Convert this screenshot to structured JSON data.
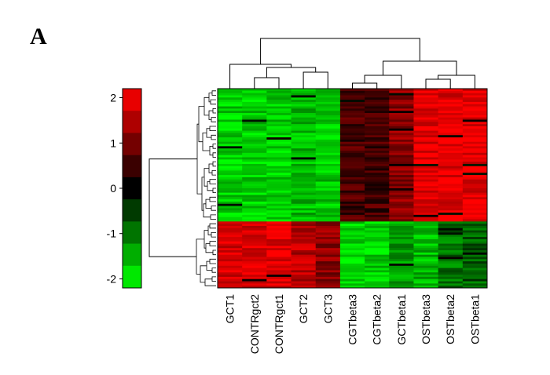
{
  "panel_label": "A",
  "chart_data": {
    "type": "heatmap",
    "title": "",
    "columns": [
      "GCT1",
      "CONTRgct2",
      "CONTRgct1",
      "GCT2",
      "GCT3",
      "CGTbeta3",
      "CGTbeta2",
      "GCTbeta1",
      "OSTbeta3",
      "OSTbeta2",
      "OSTbeta1"
    ],
    "colorbar": {
      "ticks": [
        2,
        1,
        0,
        -1,
        -2
      ],
      "range": [
        -2.2,
        2.2
      ],
      "levels": [
        2,
        1.5,
        1,
        0.5,
        0,
        -0.5,
        -1,
        -1.5,
        -2
      ],
      "colormap": "green-black-red"
    },
    "row_groups": [
      {
        "rows": 60,
        "profile": [
          -1.8,
          -1.8,
          -1.8,
          -1.6,
          -1.7,
          0.6,
          0.6,
          1.2,
          2.0,
          2.0,
          2.0
        ]
      },
      {
        "rows": 30,
        "profile": [
          1.9,
          1.9,
          2.0,
          1.6,
          1.2,
          -1.8,
          -1.8,
          -1.4,
          -1.6,
          -1.0,
          -0.8
        ]
      }
    ],
    "dendrogram_columns": true,
    "dendrogram_rows": true,
    "colors": {
      "high": "#ff0000",
      "mid": "#000000",
      "low": "#00ff00"
    }
  }
}
